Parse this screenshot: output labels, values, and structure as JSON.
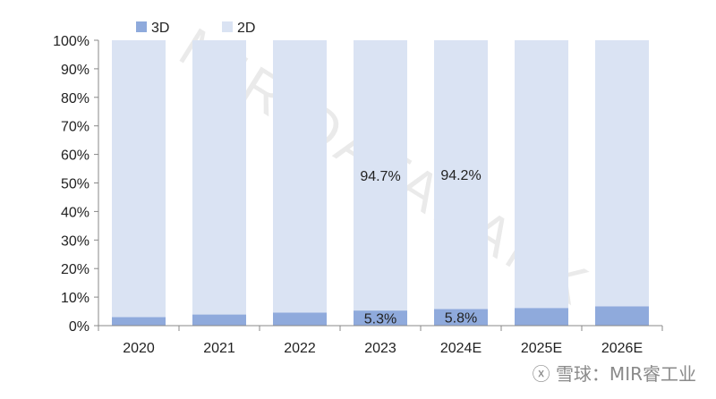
{
  "chart_data": {
    "type": "bar",
    "stacked": true,
    "normalized": true,
    "categories": [
      "2020",
      "2021",
      "2022",
      "2023",
      "2024E",
      "2025E",
      "2026E"
    ],
    "series": [
      {
        "name": "3D",
        "values": [
          3.0,
          3.9,
          4.6,
          5.3,
          5.8,
          6.2,
          6.8
        ],
        "color": "#8faadc"
      },
      {
        "name": "2D",
        "values": [
          97.0,
          96.1,
          95.4,
          94.7,
          94.2,
          93.8,
          93.2
        ],
        "color": "#dae3f3"
      }
    ],
    "data_labels": [
      {
        "series": "3D",
        "category": "2023",
        "text": "5.3%"
      },
      {
        "series": "3D",
        "category": "2024E",
        "text": "5.8%"
      },
      {
        "series": "2D",
        "category": "2023",
        "text": "94.7%"
      },
      {
        "series": "2D",
        "category": "2024E",
        "text": "94.2%"
      }
    ],
    "yticks": [
      "0%",
      "10%",
      "20%",
      "30%",
      "40%",
      "50%",
      "60%",
      "70%",
      "80%",
      "90%",
      "100%"
    ],
    "ylim": [
      0,
      100
    ],
    "legend_position": "top-left",
    "grid": false
  },
  "watermark": "MIR DATABANK",
  "footer": {
    "text": "雪球：MIR睿工业"
  }
}
